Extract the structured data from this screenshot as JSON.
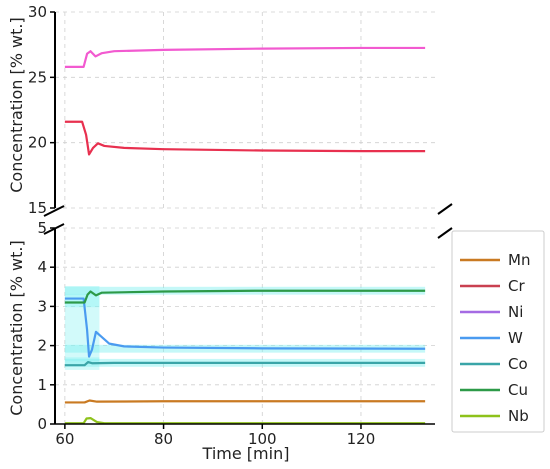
{
  "chart_data": {
    "type": "line",
    "xlabel": "Time [min]",
    "ylabel": "Concentration [% wt.]",
    "xlim": [
      58,
      135
    ],
    "x_ticks": [
      "60",
      "80",
      "100",
      "120"
    ],
    "x_tick_values": [
      60,
      80,
      100,
      120
    ],
    "grid": true,
    "legend_placement": "right",
    "panels": [
      {
        "id": "top",
        "ylim": [
          15,
          30
        ],
        "y_ticks": [
          "15",
          "20",
          "25",
          "30"
        ],
        "y_tick_values": [
          15,
          20,
          25,
          30
        ],
        "series": [
          {
            "color": "#f25ad0",
            "points": [
              [
                60,
                25.8
              ],
              [
                63.8,
                25.8
              ],
              [
                64.5,
                26.8
              ],
              [
                65.2,
                27.0
              ],
              [
                66.2,
                26.6
              ],
              [
                67.5,
                26.85
              ],
              [
                70,
                27.0
              ],
              [
                80,
                27.1
              ],
              [
                100,
                27.2
              ],
              [
                120,
                27.25
              ],
              [
                133,
                27.25
              ]
            ]
          },
          {
            "color": "#e8304f",
            "points": [
              [
                60,
                21.6
              ],
              [
                63.5,
                21.6
              ],
              [
                64.3,
                20.6
              ],
              [
                64.9,
                19.1
              ],
              [
                65.7,
                19.6
              ],
              [
                66.7,
                19.95
              ],
              [
                68,
                19.75
              ],
              [
                72,
                19.6
              ],
              [
                80,
                19.5
              ],
              [
                100,
                19.4
              ],
              [
                120,
                19.35
              ],
              [
                133,
                19.35
              ]
            ]
          }
        ]
      },
      {
        "id": "bottom",
        "ylim": [
          0,
          5
        ],
        "y_ticks": [
          "0",
          "1",
          "2",
          "3",
          "4",
          "5"
        ],
        "y_tick_values": [
          0,
          1,
          2,
          3,
          4,
          5
        ],
        "series": [
          {
            "name": "Mn",
            "color": "#c97a22",
            "points": [
              [
                60,
                0.55
              ],
              [
                64,
                0.55
              ],
              [
                65,
                0.6
              ],
              [
                66.5,
                0.57
              ],
              [
                80,
                0.58
              ],
              [
                133,
                0.58
              ]
            ]
          },
          {
            "name": "Cr",
            "color": "#c94050",
            "points": []
          },
          {
            "name": "Ni",
            "color": "#a56be3",
            "points": []
          },
          {
            "name": "W",
            "color": "#4a9bf0",
            "band": true,
            "points": [
              [
                60,
                3.2
              ],
              [
                63.8,
                3.2
              ],
              [
                64.5,
                2.4
              ],
              [
                64.9,
                1.72
              ],
              [
                65.5,
                1.9
              ],
              [
                66.3,
                2.35
              ],
              [
                67.2,
                2.25
              ],
              [
                69,
                2.05
              ],
              [
                72,
                1.98
              ],
              [
                80,
                1.95
              ],
              [
                100,
                1.93
              ],
              [
                133,
                1.92
              ]
            ]
          },
          {
            "name": "Co",
            "color": "#3aa5a8",
            "band": true,
            "points": [
              [
                60,
                1.5
              ],
              [
                64,
                1.5
              ],
              [
                64.7,
                1.58
              ],
              [
                65.5,
                1.55
              ],
              [
                70,
                1.56
              ],
              [
                133,
                1.56
              ]
            ]
          },
          {
            "name": "Cu",
            "color": "#2d9a48",
            "band": true,
            "points": [
              [
                60,
                3.1
              ],
              [
                64,
                3.1
              ],
              [
                64.6,
                3.3
              ],
              [
                65.2,
                3.38
              ],
              [
                66.3,
                3.28
              ],
              [
                67.5,
                3.35
              ],
              [
                80,
                3.38
              ],
              [
                100,
                3.4
              ],
              [
                133,
                3.4
              ]
            ]
          },
          {
            "name": "Nb",
            "color": "#8ec21b",
            "points": [
              [
                60,
                0.02
              ],
              [
                63.8,
                0.02
              ],
              [
                64.4,
                0.14
              ],
              [
                65.2,
                0.15
              ],
              [
                66.5,
                0.05
              ],
              [
                68,
                0.02
              ],
              [
                133,
                0.02
              ]
            ]
          }
        ]
      }
    ]
  }
}
